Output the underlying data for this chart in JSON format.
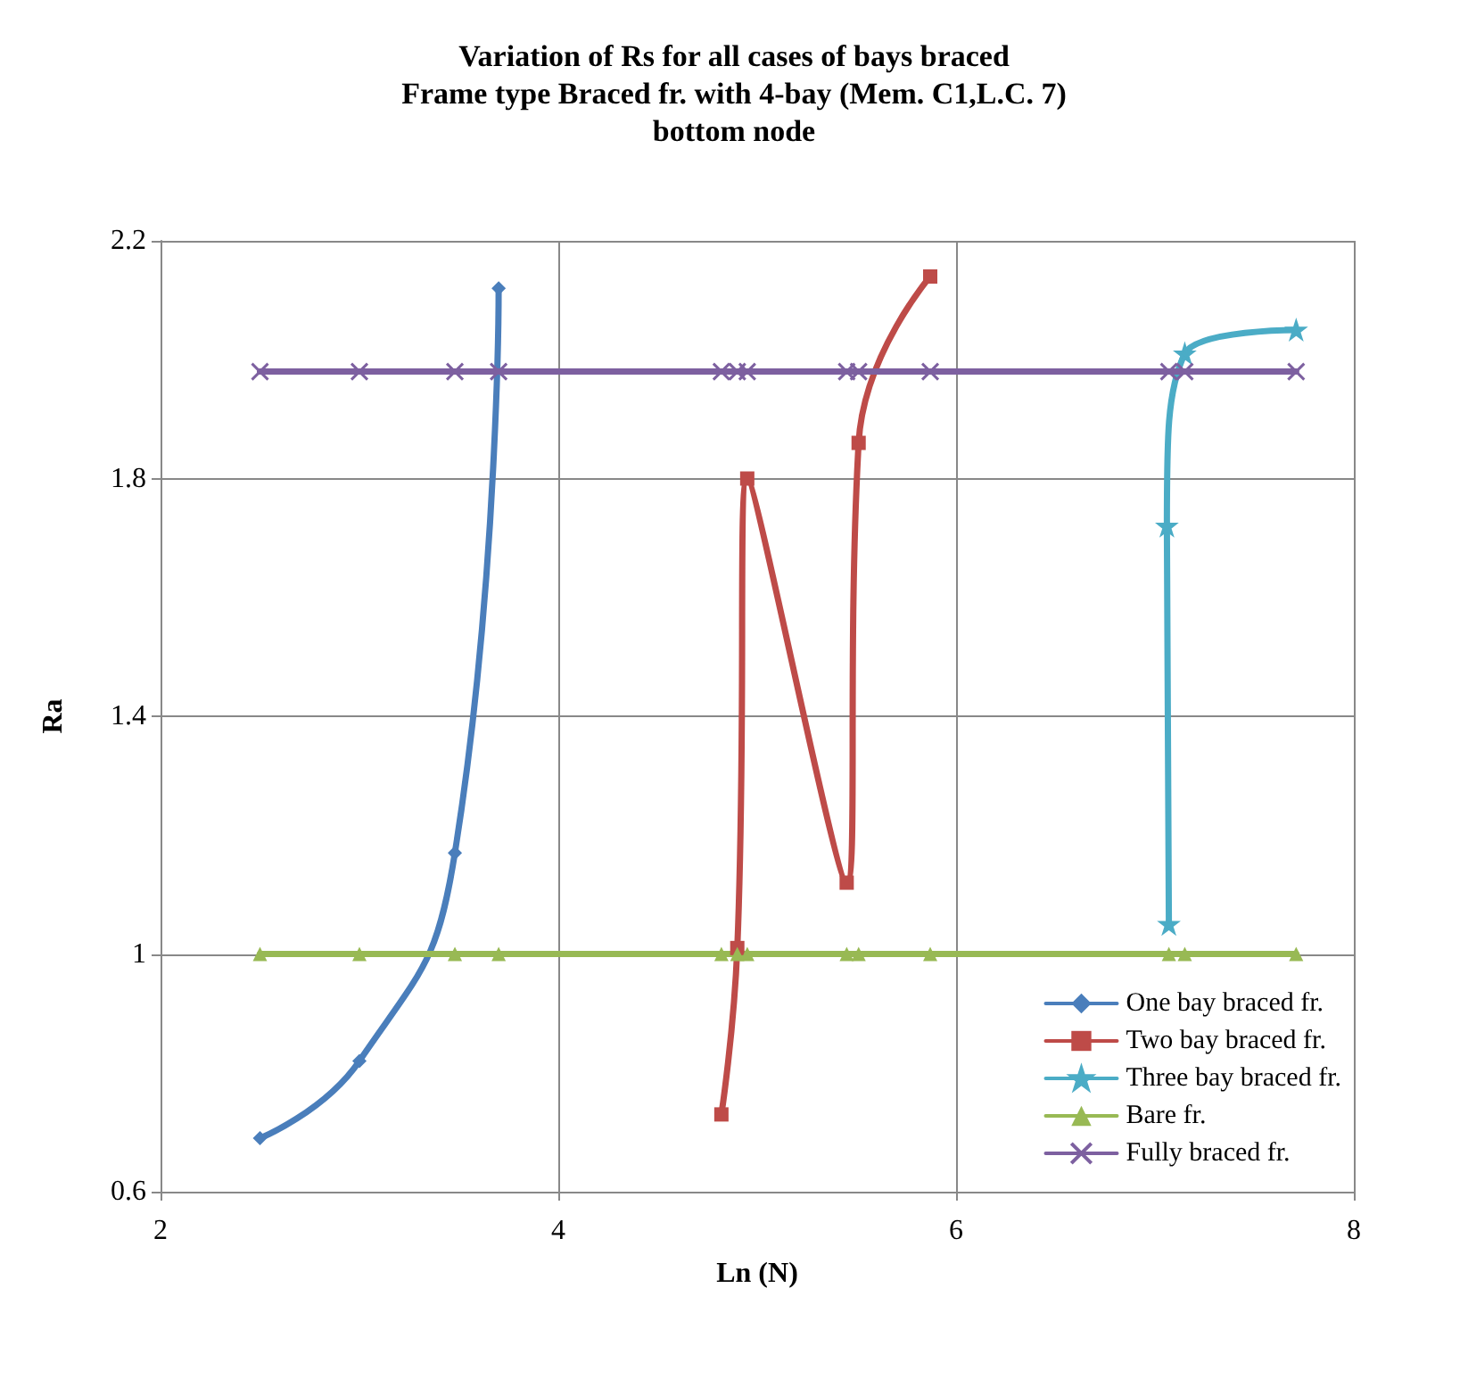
{
  "chart_data": {
    "type": "line",
    "title": "Variation of Rs for all cases of bays braced\nFrame type Braced fr. with 4-bay (Mem. C1,L.C. 7)\nbottom node",
    "xlabel": "Ln (N)",
    "ylabel": "Ra",
    "xlim": [
      2,
      8
    ],
    "xticks": [
      2,
      4,
      6,
      8
    ],
    "ylim": [
      0.6,
      2.2
    ],
    "yticks": [
      0.6,
      1,
      1.4,
      1.8,
      2.2
    ],
    "grid": true,
    "legend": "bottom right",
    "line_style": "solid",
    "series": [
      {
        "name": "One bay braced fr.",
        "color": "#4a7ebb",
        "marker": "diamond",
        "x": [
          2.5,
          3.0,
          3.48,
          3.7
        ],
        "values": [
          0.69,
          0.82,
          1.17,
          2.12
        ]
      },
      {
        "name": "Two bay braced fr.",
        "color": "#be4b48",
        "marker": "square",
        "x": [
          4.82,
          4.9,
          4.95,
          5.45,
          5.51,
          5.87
        ],
        "values": [
          0.73,
          1.01,
          1.8,
          1.12,
          1.86,
          2.14
        ]
      },
      {
        "name": "Three bay braced fr.",
        "color": "#4bacc6",
        "marker": "star",
        "x": [
          7.07,
          7.06,
          7.15,
          7.71
        ],
        "values": [
          1.05,
          1.72,
          2.01,
          2.05
        ]
      },
      {
        "name": "Bare fr.",
        "color": "#98b954",
        "marker": "triangle",
        "x": [
          2.5,
          3.0,
          3.48,
          3.7,
          4.82,
          4.9,
          4.95,
          5.45,
          5.51,
          5.87,
          7.07,
          7.15,
          7.71
        ],
        "values": [
          1,
          1,
          1,
          1,
          1,
          1,
          1,
          1,
          1,
          1,
          1,
          1,
          1
        ]
      },
      {
        "name": "Fully braced fr.",
        "color": "#7d60a0",
        "marker": "cross",
        "x": [
          2.5,
          3.0,
          3.48,
          3.7,
          4.82,
          4.9,
          4.95,
          5.45,
          5.51,
          5.87,
          7.07,
          7.15,
          7.71
        ],
        "values": [
          1.98,
          1.98,
          1.98,
          1.98,
          1.98,
          1.98,
          1.98,
          1.98,
          1.98,
          1.98,
          1.98,
          1.98,
          1.98
        ]
      }
    ]
  }
}
